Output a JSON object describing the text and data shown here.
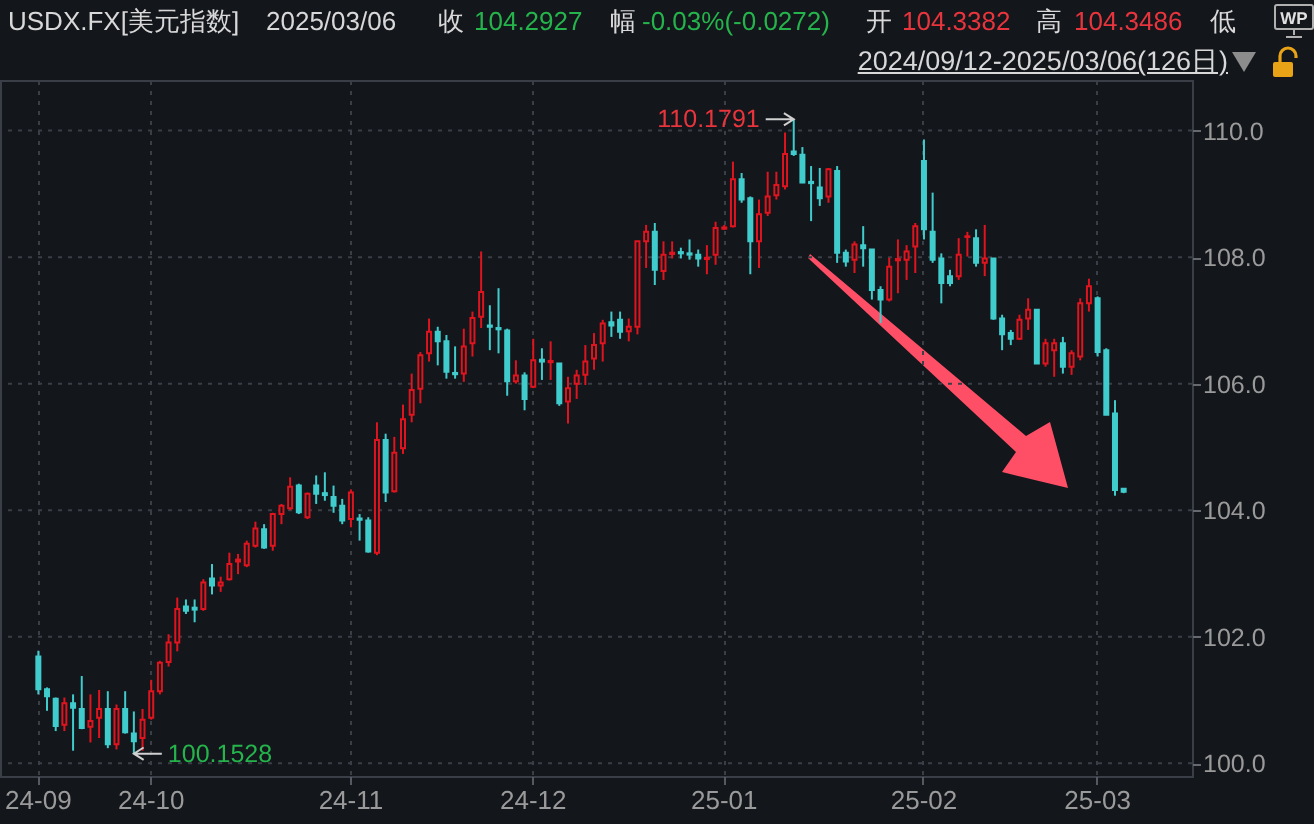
{
  "chart_data": {
    "type": "candlestick",
    "title": "USDX.FX[美元指数]",
    "subtitle": "2024/09/12-2025/03/06(126日)",
    "annotations": [
      "2025/03/06",
      "收",
      "104.2927",
      "幅",
      "-0.03%(-0.0272)",
      "开",
      "104.3382",
      "高",
      "104.3486",
      "低",
      "WP",
      "110.1791",
      "100.1528"
    ],
    "categories": [
      "24-09",
      null,
      null,
      null,
      null,
      null,
      null,
      null,
      null,
      null,
      null,
      null,
      null,
      "24-10",
      null,
      null,
      null,
      null,
      null,
      null,
      null,
      null,
      null,
      null,
      null,
      null,
      null,
      null,
      null,
      null,
      null,
      null,
      null,
      null,
      null,
      null,
      "24-11",
      null,
      null,
      null,
      null,
      null,
      null,
      null,
      null,
      null,
      null,
      null,
      null,
      null,
      null,
      null,
      null,
      null,
      null,
      null,
      null,
      "24-12",
      null,
      null,
      null,
      null,
      null,
      null,
      null,
      null,
      null,
      null,
      null,
      null,
      null,
      null,
      null,
      null,
      null,
      null,
      null,
      null,
      null,
      "25-01",
      null,
      null,
      null,
      null,
      null,
      null,
      null,
      null,
      null,
      null,
      null,
      null,
      null,
      null,
      null,
      null,
      null,
      null,
      null,
      null,
      null,
      null,
      "25-02",
      null,
      null,
      null,
      null,
      null,
      null,
      null,
      null,
      null,
      null,
      null,
      null,
      null,
      null,
      null,
      null,
      null,
      null,
      null,
      "25-03",
      null,
      null,
      null
    ],
    "ohlc": [
      [
        101.69,
        101.78,
        101.09,
        101.17
      ],
      [
        101.17,
        101.2,
        100.83,
        101.06
      ],
      [
        101.02,
        101.04,
        100.51,
        100.59
      ],
      [
        100.61,
        101.04,
        100.51,
        100.95
      ],
      [
        100.95,
        101.09,
        100.2,
        100.88
      ],
      [
        100.86,
        101.38,
        100.54,
        100.56
      ],
      [
        100.58,
        101.09,
        100.33,
        100.67
      ],
      [
        100.72,
        101.16,
        100.4,
        100.86
      ],
      [
        100.86,
        101.14,
        100.24,
        100.3
      ],
      [
        100.3,
        100.93,
        100.22,
        100.86
      ],
      [
        100.86,
        101.14,
        100.47,
        100.49
      ],
      [
        100.47,
        100.82,
        100.1528,
        100.35
      ],
      [
        100.4,
        100.86,
        100.2,
        100.69
      ],
      [
        100.72,
        101.32,
        100.69,
        101.14
      ],
      [
        101.14,
        101.62,
        101.09,
        101.59
      ],
      [
        101.6,
        102.04,
        101.53,
        101.91
      ],
      [
        101.91,
        102.62,
        101.77,
        102.44
      ],
      [
        102.48,
        102.59,
        102.36,
        102.41
      ],
      [
        102.46,
        102.59,
        102.23,
        102.43
      ],
      [
        102.44,
        102.91,
        102.41,
        102.86
      ],
      [
        102.92,
        103.15,
        102.67,
        102.81
      ],
      [
        102.81,
        102.95,
        102.71,
        102.86
      ],
      [
        102.91,
        103.33,
        102.89,
        103.15
      ],
      [
        103.19,
        103.31,
        102.99,
        103.22
      ],
      [
        103.13,
        103.52,
        103.1,
        103.47
      ],
      [
        103.44,
        103.82,
        103.41,
        103.71
      ],
      [
        103.7,
        103.78,
        103.39,
        103.41
      ],
      [
        103.44,
        103.96,
        103.36,
        103.94
      ],
      [
        103.94,
        104.1,
        103.78,
        104.07
      ],
      [
        104.03,
        104.52,
        104.0,
        104.37
      ],
      [
        104.39,
        104.42,
        103.94,
        103.97
      ],
      [
        103.89,
        104.28,
        103.86,
        104.26
      ],
      [
        104.39,
        104.55,
        104.1,
        104.26
      ],
      [
        104.27,
        104.6,
        104.15,
        104.24
      ],
      [
        104.21,
        104.39,
        103.96,
        104.07
      ],
      [
        104.07,
        104.18,
        103.78,
        103.84
      ],
      [
        103.86,
        104.33,
        103.73,
        104.28
      ],
      [
        103.87,
        103.94,
        103.52,
        103.85
      ],
      [
        103.84,
        103.89,
        103.33,
        103.35
      ],
      [
        103.33,
        105.39,
        103.29,
        105.11
      ],
      [
        105.11,
        105.21,
        104.13,
        104.28
      ],
      [
        104.3,
        105.16,
        104.28,
        104.91
      ],
      [
        104.98,
        105.67,
        104.89,
        105.44
      ],
      [
        105.51,
        106.16,
        105.39,
        105.9
      ],
      [
        105.92,
        106.5,
        105.69,
        106.45
      ],
      [
        106.48,
        107.03,
        106.35,
        106.82
      ],
      [
        106.82,
        106.9,
        106.29,
        106.67
      ],
      [
        106.67,
        106.77,
        106.08,
        106.19
      ],
      [
        106.17,
        106.59,
        106.08,
        106.15
      ],
      [
        106.16,
        106.87,
        106.03,
        106.59
      ],
      [
        106.64,
        107.14,
        106.43,
        107.04
      ],
      [
        107.06,
        108.09,
        106.88,
        107.45
      ],
      [
        106.92,
        107.24,
        106.53,
        106.9
      ],
      [
        106.88,
        107.51,
        106.48,
        106.86
      ],
      [
        106.84,
        106.87,
        105.81,
        106.04
      ],
      [
        106.04,
        106.37,
        106.0,
        106.13
      ],
      [
        106.13,
        106.18,
        105.58,
        105.76
      ],
      [
        105.95,
        106.71,
        105.93,
        106.37
      ],
      [
        106.38,
        106.56,
        106.06,
        106.35
      ],
      [
        106.34,
        106.67,
        106.06,
        106.36
      ],
      [
        106.32,
        106.32,
        105.65,
        105.69
      ],
      [
        105.72,
        106.11,
        105.37,
        105.93
      ],
      [
        106.0,
        106.22,
        105.76,
        106.13
      ],
      [
        106.14,
        106.61,
        105.98,
        106.35
      ],
      [
        106.4,
        106.8,
        106.22,
        106.61
      ],
      [
        106.64,
        107.01,
        106.35,
        106.95
      ],
      [
        106.97,
        107.14,
        106.74,
        106.92
      ],
      [
        107.01,
        107.14,
        106.71,
        106.82
      ],
      [
        106.83,
        107.03,
        106.67,
        106.9
      ],
      [
        106.9,
        108.25,
        106.78,
        108.25
      ],
      [
        108.25,
        108.51,
        107.83,
        108.4
      ],
      [
        108.4,
        108.54,
        107.56,
        107.8
      ],
      [
        107.78,
        108.25,
        107.64,
        108.04
      ],
      [
        108.05,
        108.25,
        107.98,
        108.07
      ],
      [
        108.08,
        108.15,
        107.98,
        108.06
      ],
      [
        108.06,
        108.28,
        107.96,
        108.04
      ],
      [
        108.04,
        108.12,
        107.85,
        107.98
      ],
      [
        107.97,
        108.19,
        107.73,
        107.99
      ],
      [
        108.04,
        108.56,
        107.88,
        108.46
      ],
      [
        108.45,
        108.51,
        108.43,
        108.47
      ],
      [
        108.49,
        109.51,
        108.47,
        109.23
      ],
      [
        109.23,
        109.33,
        108.86,
        108.91
      ],
      [
        108.93,
        108.96,
        107.73,
        108.25
      ],
      [
        108.25,
        108.91,
        107.83,
        108.68
      ],
      [
        108.7,
        109.35,
        108.65,
        108.96
      ],
      [
        108.98,
        109.35,
        108.91,
        109.14
      ],
      [
        109.12,
        109.97,
        109.07,
        109.63
      ],
      [
        109.67,
        110.1791,
        109.6,
        109.63
      ],
      [
        109.62,
        109.74,
        109.17,
        109.18
      ],
      [
        109.19,
        109.44,
        108.57,
        109.17
      ],
      [
        109.1,
        109.41,
        108.81,
        108.93
      ],
      [
        108.96,
        109.41,
        108.86,
        109.39
      ],
      [
        109.36,
        109.44,
        107.91,
        108.07
      ],
      [
        108.07,
        108.12,
        107.85,
        107.93
      ],
      [
        107.96,
        108.25,
        107.75,
        108.2
      ],
      [
        108.19,
        108.49,
        107.85,
        108.14
      ],
      [
        108.12,
        108.12,
        107.33,
        107.48
      ],
      [
        107.48,
        107.54,
        106.96,
        107.33
      ],
      [
        107.33,
        107.99,
        107.3,
        107.85
      ],
      [
        107.95,
        108.28,
        107.43,
        107.97
      ],
      [
        107.96,
        108.19,
        107.64,
        108.09
      ],
      [
        108.17,
        108.54,
        107.75,
        108.49
      ],
      [
        109.52,
        109.86,
        108.28,
        108.44
      ],
      [
        108.4,
        109.02,
        107.91,
        107.96
      ],
      [
        107.98,
        108.06,
        107.27,
        107.59
      ],
      [
        107.7,
        107.8,
        107.54,
        107.59
      ],
      [
        107.7,
        108.3,
        107.64,
        108.04
      ],
      [
        108.32,
        108.4,
        108.01,
        108.33
      ],
      [
        108.3,
        108.44,
        107.85,
        107.91
      ],
      [
        107.91,
        108.51,
        107.7,
        107.98
      ],
      [
        107.98,
        107.98,
        107.01,
        107.03
      ],
      [
        107.03,
        107.09,
        106.53,
        106.78
      ],
      [
        106.8,
        106.85,
        106.61,
        106.71
      ],
      [
        106.71,
        107.09,
        106.69,
        107.01
      ],
      [
        107.03,
        107.35,
        106.85,
        107.17
      ],
      [
        107.17,
        107.17,
        106.32,
        106.32
      ],
      [
        106.32,
        106.71,
        106.27,
        106.64
      ],
      [
        106.53,
        106.71,
        106.11,
        106.64
      ],
      [
        106.64,
        106.74,
        106.16,
        106.27
      ],
      [
        106.27,
        106.53,
        106.14,
        106.48
      ],
      [
        106.43,
        107.35,
        106.37,
        107.27
      ],
      [
        107.27,
        107.66,
        107.14,
        107.54
      ],
      [
        107.35,
        107.38,
        106.43,
        106.5
      ],
      [
        106.53,
        106.56,
        105.51,
        105.51
      ],
      [
        105.53,
        105.74,
        104.23,
        104.32
      ],
      [
        104.3382,
        104.3486,
        104.27,
        104.2927
      ]
    ],
    "colors": [
      "#40cccc",
      "#40cccc",
      "#40cccc",
      "#e0141e",
      "#40cccc",
      "#40cccc",
      "#e0141e",
      "#e0141e",
      "#40cccc",
      "#e0141e",
      "#40cccc",
      "#40cccc",
      "#e0141e",
      "#e0141e",
      "#e0141e",
      "#e0141e",
      "#e0141e",
      "#40cccc",
      "#40cccc",
      "#e0141e",
      "#40cccc",
      "#e0141e",
      "#e0141e",
      "#e0141e",
      "#e0141e",
      "#e0141e",
      "#40cccc",
      "#e0141e",
      "#e0141e",
      "#e0141e",
      "#40cccc",
      "#e0141e",
      "#40cccc",
      "#40cccc",
      "#40cccc",
      "#40cccc",
      "#e0141e",
      "#40cccc",
      "#40cccc",
      "#e0141e",
      "#40cccc",
      "#e0141e",
      "#e0141e",
      "#e0141e",
      "#e0141e",
      "#e0141e",
      "#40cccc",
      "#40cccc",
      "#40cccc",
      "#e0141e",
      "#e0141e",
      "#e0141e",
      "#40cccc",
      "#40cccc",
      "#40cccc",
      "#e0141e",
      "#40cccc",
      "#e0141e",
      "#40cccc",
      "#e0141e",
      "#40cccc",
      "#e0141e",
      "#e0141e",
      "#e0141e",
      "#e0141e",
      "#e0141e",
      "#40cccc",
      "#40cccc",
      "#e0141e",
      "#e0141e",
      "#e0141e",
      "#40cccc",
      "#e0141e",
      "#e0141e",
      "#40cccc",
      "#40cccc",
      "#40cccc",
      "#e0141e",
      "#e0141e",
      "#e0141e",
      "#e0141e",
      "#40cccc",
      "#40cccc",
      "#e0141e",
      "#e0141e",
      "#e0141e",
      "#e0141e",
      "#40cccc",
      "#40cccc",
      "#40cccc",
      "#40cccc",
      "#e0141e",
      "#40cccc",
      "#40cccc",
      "#e0141e",
      "#40cccc",
      "#40cccc",
      "#40cccc",
      "#e0141e",
      "#e0141e",
      "#e0141e",
      "#e0141e",
      "#40cccc",
      "#40cccc",
      "#40cccc",
      "#40cccc",
      "#e0141e",
      "#e0141e",
      "#40cccc",
      "#e0141e",
      "#40cccc",
      "#40cccc",
      "#40cccc",
      "#e0141e",
      "#e0141e",
      "#40cccc",
      "#e0141e",
      "#e0141e",
      "#40cccc",
      "#e0141e",
      "#e0141e",
      "#e0141e",
      "#40cccc",
      "#40cccc",
      "#40cccc",
      "#40cccc"
    ],
    "ylim": [
      99.8,
      110.8
    ],
    "yticks": [
      {
        "value": 100,
        "label": "100.0"
      },
      {
        "value": 102,
        "label": "102.0"
      },
      {
        "value": 104,
        "label": "104.0"
      },
      {
        "value": 106,
        "label": "106.0"
      },
      {
        "value": 108,
        "label": "108.0"
      },
      {
        "value": 110,
        "label": "110.0"
      }
    ],
    "grid": true
  }
}
